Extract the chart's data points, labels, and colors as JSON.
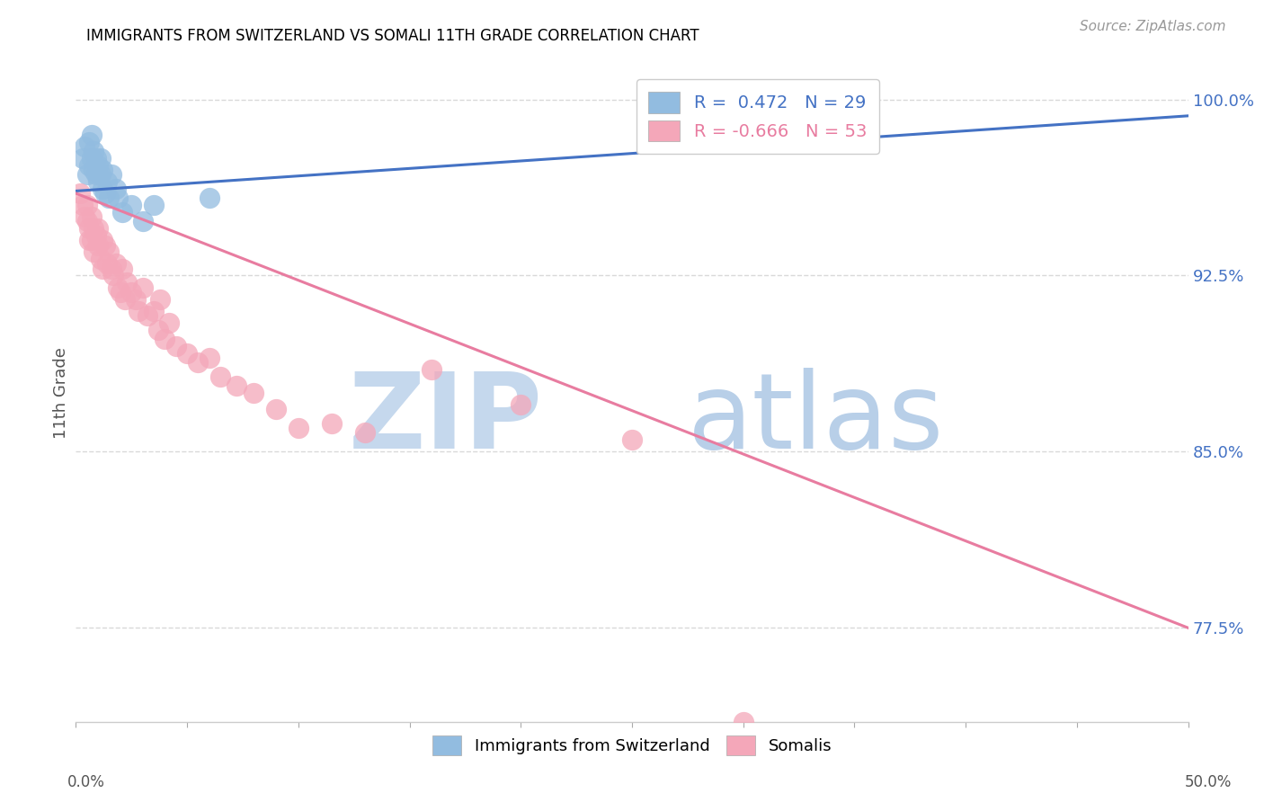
{
  "title": "IMMIGRANTS FROM SWITZERLAND VS SOMALI 11TH GRADE CORRELATION CHART",
  "source": "Source: ZipAtlas.com",
  "ylabel": "11th Grade",
  "xlim": [
    0.0,
    0.5
  ],
  "ylim": [
    0.735,
    1.015
  ],
  "yticks": [
    0.775,
    0.85,
    0.925,
    1.0
  ],
  "ytick_labels": [
    "77.5%",
    "85.0%",
    "92.5%",
    "100.0%"
  ],
  "xticks": [
    0.0,
    0.05,
    0.1,
    0.15,
    0.2,
    0.25,
    0.3,
    0.35,
    0.4,
    0.45,
    0.5
  ],
  "legend_blue_r": "R =  0.472",
  "legend_blue_n": "N = 29",
  "legend_pink_r": "R = -0.666",
  "legend_pink_n": "N = 53",
  "blue_color": "#92bce0",
  "pink_color": "#f4a7b9",
  "blue_line_color": "#4472c4",
  "pink_line_color": "#e87ca0",
  "watermark_zip_color": "#c5d8ed",
  "watermark_atlas_color": "#b8cfe8",
  "background_color": "#ffffff",
  "grid_color": "#d9d9d9",
  "title_color": "#000000",
  "ylabel_color": "#555555",
  "ytick_color": "#4472c4",
  "xlabel_color": "#555555",
  "source_color": "#999999",
  "swiss_points_x": [
    0.003,
    0.004,
    0.005,
    0.006,
    0.006,
    0.007,
    0.007,
    0.008,
    0.008,
    0.009,
    0.009,
    0.01,
    0.01,
    0.011,
    0.011,
    0.012,
    0.012,
    0.013,
    0.014,
    0.015,
    0.016,
    0.018,
    0.019,
    0.021,
    0.025,
    0.03,
    0.035,
    0.06,
    0.285
  ],
  "swiss_points_y": [
    0.975,
    0.98,
    0.968,
    0.972,
    0.982,
    0.975,
    0.985,
    0.97,
    0.978,
    0.968,
    0.975,
    0.965,
    0.972,
    0.968,
    0.975,
    0.962,
    0.97,
    0.96,
    0.965,
    0.958,
    0.968,
    0.962,
    0.958,
    0.952,
    0.955,
    0.948,
    0.955,
    0.958,
    0.998
  ],
  "somali_points_x": [
    0.002,
    0.003,
    0.004,
    0.005,
    0.005,
    0.006,
    0.006,
    0.007,
    0.007,
    0.008,
    0.008,
    0.009,
    0.01,
    0.01,
    0.011,
    0.012,
    0.012,
    0.013,
    0.014,
    0.015,
    0.016,
    0.017,
    0.018,
    0.019,
    0.02,
    0.021,
    0.022,
    0.023,
    0.025,
    0.027,
    0.028,
    0.03,
    0.032,
    0.035,
    0.037,
    0.038,
    0.04,
    0.042,
    0.045,
    0.05,
    0.055,
    0.06,
    0.065,
    0.072,
    0.08,
    0.09,
    0.1,
    0.115,
    0.13,
    0.16,
    0.2,
    0.25,
    0.3
  ],
  "somali_points_y": [
    0.96,
    0.955,
    0.95,
    0.955,
    0.948,
    0.945,
    0.94,
    0.95,
    0.94,
    0.945,
    0.935,
    0.942,
    0.938,
    0.945,
    0.932,
    0.94,
    0.928,
    0.938,
    0.93,
    0.935,
    0.928,
    0.925,
    0.93,
    0.92,
    0.918,
    0.928,
    0.915,
    0.922,
    0.918,
    0.915,
    0.91,
    0.92,
    0.908,
    0.91,
    0.902,
    0.915,
    0.898,
    0.905,
    0.895,
    0.892,
    0.888,
    0.89,
    0.882,
    0.878,
    0.875,
    0.868,
    0.86,
    0.862,
    0.858,
    0.885,
    0.87,
    0.855,
    0.735
  ],
  "blue_line_x0": 0.0,
  "blue_line_y0": 0.961,
  "blue_line_x1": 0.5,
  "blue_line_y1": 0.993,
  "pink_line_x0": 0.0,
  "pink_line_y0": 0.96,
  "pink_line_x1": 0.5,
  "pink_line_y1": 0.775
}
